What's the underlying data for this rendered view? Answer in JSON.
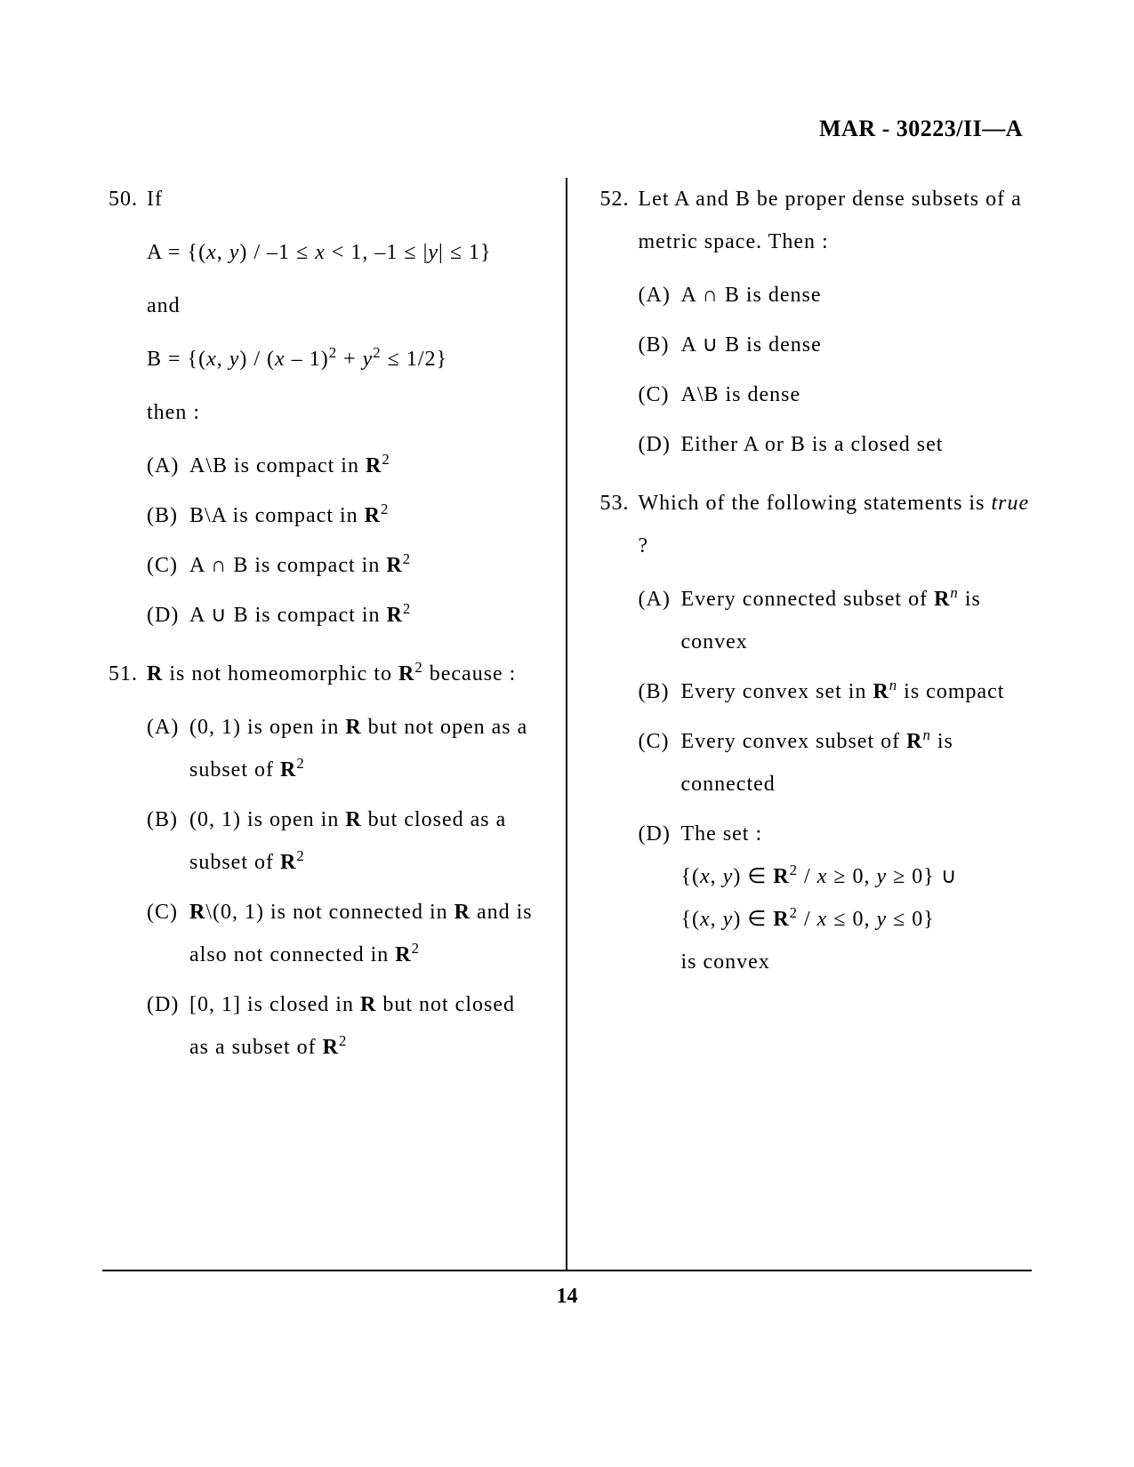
{
  "header": "MAR - 30223/II—A",
  "page_number": "14",
  "left_column": {
    "q50": {
      "number": "50.",
      "stem_line1": "If",
      "stem_line2_html": "A = {(<span class='math-it'>x</span>, <span class='math-it'>y</span>) / –1 ≤ <span class='math-it'>x</span> < 1, –1 ≤ |<span class='math-it'>y</span>| ≤ 1}",
      "stem_line3": "and",
      "stem_line4_html": "B = {(<span class='math-it'>x</span>, <span class='math-it'>y</span>) / (<span class='math-it'>x</span> – 1)<sup>2</sup> + <span class='math-it'>y</span><sup>2</sup> ≤ 1/2}",
      "stem_line5": "then :",
      "options": [
        {
          "label": "(A)",
          "html": "A\\B is compact in <span class='bold'>R</span><sup>2</sup>"
        },
        {
          "label": "(B)",
          "html": "B\\A is compact in <span class='bold'>R</span><sup>2</sup>"
        },
        {
          "label": "(C)",
          "html": "A ∩ B  is compact in <span class='bold'>R</span><sup>2</sup>"
        },
        {
          "label": "(D)",
          "html": "A ∪ B  is compact in <span class='bold'>R</span><sup>2</sup>"
        }
      ]
    },
    "q51": {
      "number": "51.",
      "stem_html": "<span class='bold'>R</span>  is  not  homeomorphic  to  <span class='bold'>R</span><sup>2</sup> because :",
      "options": [
        {
          "label": "(A)",
          "html": "(0, 1) is open in <span class='bold'>R</span> but not open as a subset of <span class='bold'>R</span><sup>2</sup>"
        },
        {
          "label": "(B)",
          "html": "(0, 1) is open in <span class='bold'>R</span> but closed as a subset of <span class='bold'>R</span><sup>2</sup>"
        },
        {
          "label": "(C)",
          "html": "<span class='bold'>R</span>\\(0, 1) is not connected in <span class='bold'>R</span> and is also not connected in <span class='bold'>R</span><sup>2</sup>"
        },
        {
          "label": "(D)",
          "html": "[0, 1] is closed in <span class='bold'>R</span> but not closed as a subset of <span class='bold'>R</span><sup>2</sup>"
        }
      ]
    }
  },
  "right_column": {
    "q52": {
      "number": "52.",
      "stem_html": "Let A and B be proper dense subsets of a metric space. Then :",
      "options": [
        {
          "label": "(A)",
          "html": "A ∩ B  is dense"
        },
        {
          "label": "(B)",
          "html": "A ∪ B  is dense"
        },
        {
          "label": "(C)",
          "html": "A\\B is dense"
        },
        {
          "label": "(D)",
          "html": "Either A or B is a closed set"
        }
      ]
    },
    "q53": {
      "number": "53.",
      "stem_html": "Which of the following statements is <span class='math-it'>true</span> ?",
      "options": [
        {
          "label": "(A)",
          "html": "Every connected subset of <span class='bold'>R</span><sup><span class='math-it'>n</span></sup> is convex"
        },
        {
          "label": "(B)",
          "html": "Every  convex  set  in  <span class='bold'>R</span><sup><span class='math-it'>n</span></sup>  is compact"
        },
        {
          "label": "(C)",
          "html": "Every convex subset of <span class='bold'>R</span><sup><span class='math-it'>n</span></sup> is connected"
        },
        {
          "label": "(D)",
          "html": "The set :<br>{(<span class='math-it'>x</span>, <span class='math-it'>y</span>) ∈ <span class='bold'>R</span><sup>2</sup> / <span class='math-it'>x</span> ≥ 0, <span class='math-it'>y</span> ≥ 0}  ∪<br>{(<span class='math-it'>x</span>, <span class='math-it'>y</span>) ∈ <span class='bold'>R</span><sup>2</sup> / <span class='math-it'>x</span> ≤ 0, <span class='math-it'>y</span> ≤ 0}<br>is convex"
        }
      ]
    }
  }
}
